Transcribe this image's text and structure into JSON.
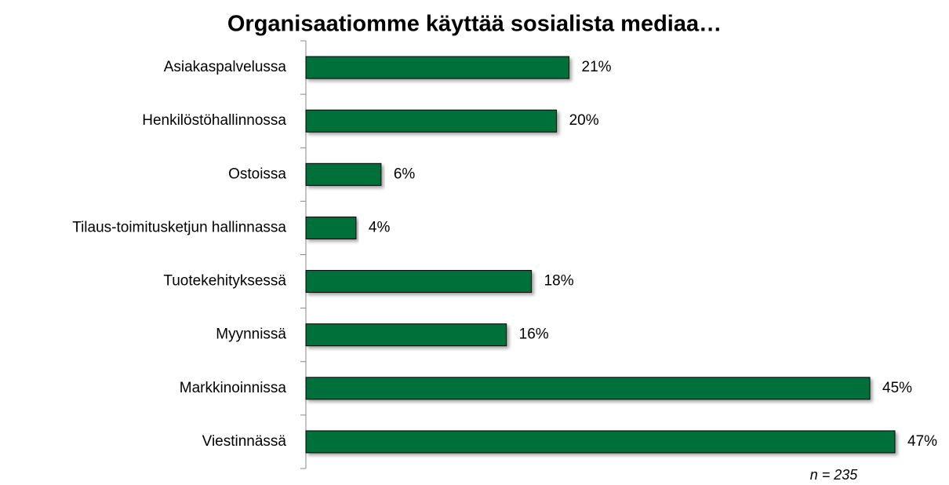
{
  "chart_data": {
    "type": "bar",
    "orientation": "horizontal",
    "title": "Organisaatiomme käyttää sosialista mediaa…",
    "categories": [
      "Asiakaspalvelussa",
      "Henkilöstöhallinnossa",
      "Ostoissa",
      "Tilaus-toimitusketjun hallinnassa",
      "Tuotekehityksessä",
      "Myynnissä",
      "Markkinoinnissa",
      "Viestinnässä"
    ],
    "values": [
      21,
      20,
      6,
      4,
      18,
      16,
      45,
      47
    ],
    "value_labels": [
      "21%",
      "20%",
      "6%",
      "4%",
      "18%",
      "16%",
      "45%",
      "47%"
    ],
    "color": "#00703a",
    "annotation": "n = 235"
  }
}
